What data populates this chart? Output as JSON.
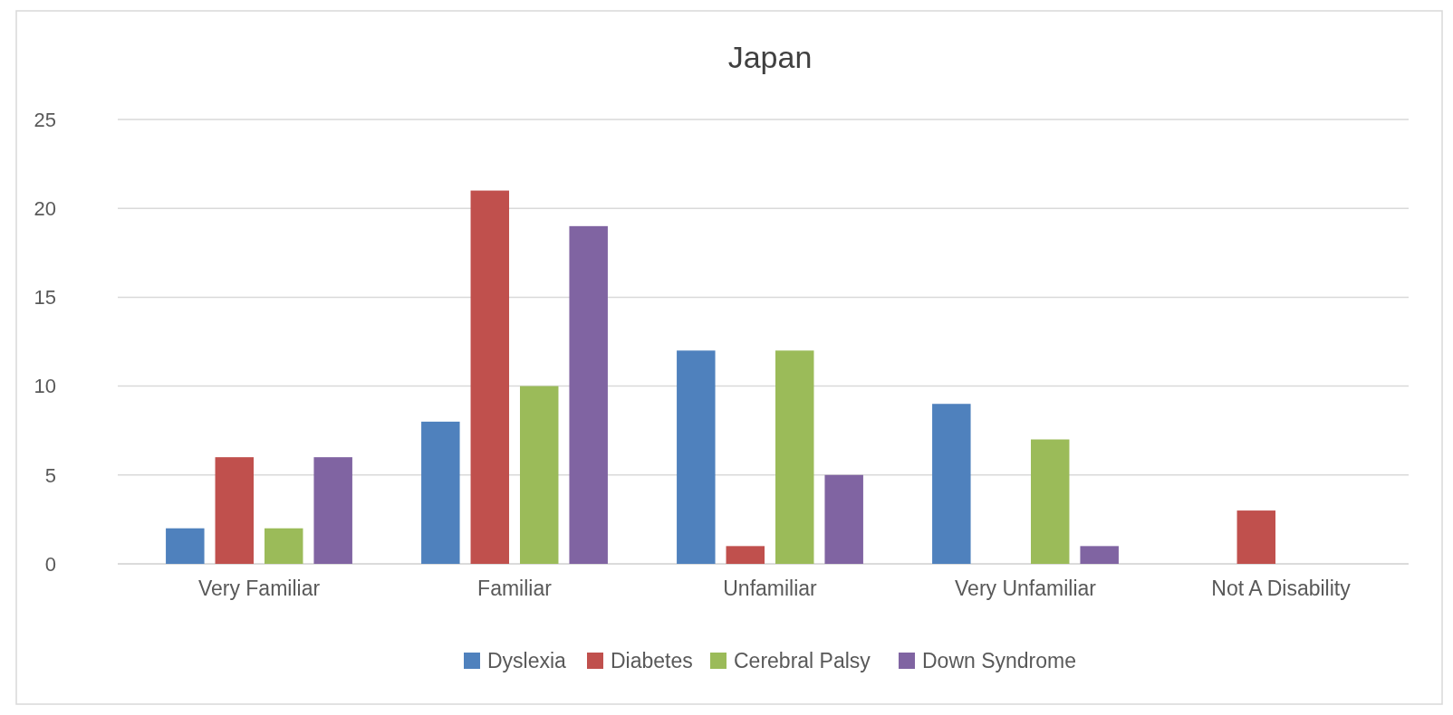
{
  "chart_data": {
    "type": "bar",
    "title": "Japan",
    "categories": [
      "Very Familiar",
      "Familiar",
      "Unfamiliar",
      "Very Unfamiliar",
      "Not A Disability"
    ],
    "series": [
      {
        "name": "Dyslexia",
        "color": "#4f81bd",
        "values": [
          2,
          8,
          12,
          9,
          0
        ]
      },
      {
        "name": "Diabetes",
        "color": "#c0504d",
        "values": [
          6,
          21,
          1,
          0,
          3
        ]
      },
      {
        "name": "Cerebral Palsy",
        "color": "#9bbb59",
        "values": [
          2,
          10,
          12,
          7,
          0
        ]
      },
      {
        "name": "Down Syndrome",
        "color": "#8064a2",
        "values": [
          6,
          19,
          5,
          1,
          0
        ]
      }
    ],
    "ylim": [
      0,
      25
    ],
    "yticks": [
      0,
      5,
      10,
      15,
      20,
      25
    ],
    "grid": "y",
    "legend": "bottom"
  }
}
